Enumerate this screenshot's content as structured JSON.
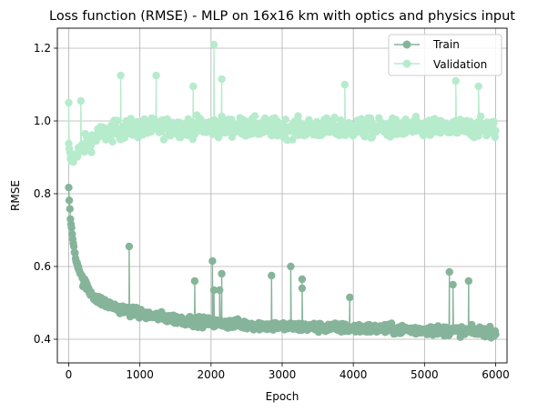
{
  "chart_data": {
    "type": "line",
    "title": "Loss function (RMSE) - MLP on 16x16 km with optics and physics input",
    "xlabel": "Epoch",
    "ylabel": "RMSE",
    "xlim": [
      -160,
      6160
    ],
    "ylim": [
      0.335,
      1.255
    ],
    "xticks": [
      0,
      1000,
      2000,
      3000,
      4000,
      5000,
      6000
    ],
    "yticks": [
      0.4,
      0.6,
      0.8,
      1.0,
      1.2
    ],
    "xtick_labels": [
      "0",
      "1000",
      "2000",
      "3000",
      "4000",
      "5000",
      "6000"
    ],
    "ytick_labels": [
      "0.4",
      "0.6",
      "0.8",
      "1.0",
      "1.2"
    ],
    "grid": true,
    "legend_position": "top-right",
    "series": [
      {
        "name": "Train",
        "color": "#86b49a",
        "marker": "circle",
        "description_points": [
          [
            0,
            0.81
          ],
          [
            10,
            0.78
          ],
          [
            20,
            0.74
          ],
          [
            40,
            0.7
          ],
          [
            60,
            0.67
          ],
          [
            100,
            0.62
          ],
          [
            150,
            0.59
          ],
          [
            200,
            0.56
          ],
          [
            300,
            0.53
          ],
          [
            400,
            0.51
          ],
          [
            500,
            0.5
          ],
          [
            700,
            0.485
          ],
          [
            1000,
            0.47
          ],
          [
            1500,
            0.455
          ],
          [
            2000,
            0.445
          ],
          [
            3000,
            0.435
          ],
          [
            4000,
            0.43
          ],
          [
            5000,
            0.425
          ],
          [
            6000,
            0.42
          ]
        ],
        "spikes": [
          [
            850,
            0.655
          ],
          [
            2020,
            0.615
          ],
          [
            2040,
            0.535
          ],
          [
            2150,
            0.58
          ],
          [
            2120,
            0.535
          ],
          [
            1770,
            0.56
          ],
          [
            2850,
            0.575
          ],
          [
            3120,
            0.6
          ],
          [
            3280,
            0.565
          ],
          [
            3280,
            0.54
          ],
          [
            5350,
            0.585
          ],
          [
            5400,
            0.55
          ],
          [
            5620,
            0.56
          ],
          [
            3950,
            0.515
          ]
        ]
      },
      {
        "name": "Validation",
        "color": "#b6ebcc",
        "marker": "circle",
        "description_points": [
          [
            0,
            0.93
          ],
          [
            20,
            0.9
          ],
          [
            50,
            0.89
          ],
          [
            100,
            0.91
          ],
          [
            200,
            0.93
          ],
          [
            400,
            0.96
          ],
          [
            700,
            0.975
          ],
          [
            1000,
            0.98
          ],
          [
            2000,
            0.985
          ],
          [
            3000,
            0.98
          ],
          [
            4000,
            0.98
          ],
          [
            5000,
            0.98
          ],
          [
            6000,
            0.98
          ]
        ],
        "spikes": [
          [
            0,
            1.05
          ],
          [
            170,
            1.055
          ],
          [
            730,
            1.125
          ],
          [
            1230,
            1.125
          ],
          [
            2040,
            1.21
          ],
          [
            2150,
            1.115
          ],
          [
            3880,
            1.1
          ],
          [
            5440,
            1.11
          ],
          [
            5760,
            1.095
          ],
          [
            1750,
            1.095
          ]
        ]
      }
    ]
  }
}
